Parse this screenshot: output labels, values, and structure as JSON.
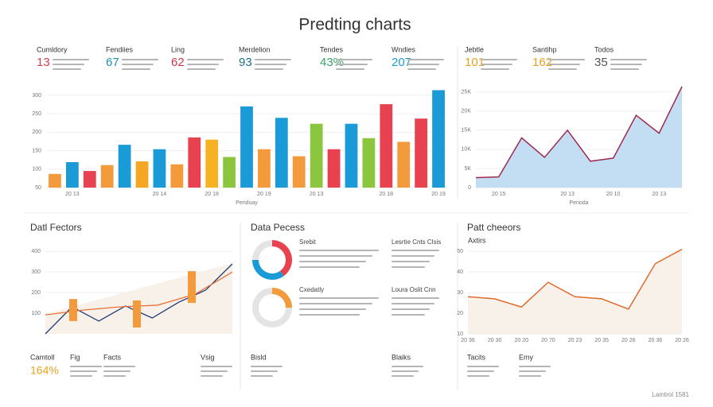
{
  "title": "Predting charts",
  "kpis": [
    {
      "label": "Cumldory",
      "value": "13",
      "color": "#d9414e"
    },
    {
      "label": "Fendiies",
      "value": "67",
      "color": "#1c8fb8"
    },
    {
      "label": "Ling",
      "value": "62",
      "color": "#c7384a"
    },
    {
      "label": "Merdelion",
      "value": "93",
      "color": "#1f6f86"
    },
    {
      "label": "Tendes",
      "value": "43%",
      "color": "#3aa66a"
    },
    {
      "label": "Wndies",
      "value": "207",
      "color": "#1b9fc7"
    },
    {
      "label": "Jebtle",
      "value": "101",
      "color": "#e8a21d"
    },
    {
      "label": "Santihp",
      "value": "162",
      "color": "#e6a020"
    },
    {
      "label": "Todos",
      "value": "35",
      "color": "#555555"
    }
  ],
  "sections": [
    "Datl Fectors",
    "Data Pecess",
    "Patt cheeors"
  ],
  "chart_data": [
    {
      "type": "bar",
      "x_label": "Periduay",
      "categories": [
        null,
        "20 13",
        null,
        null,
        null,
        null,
        "20 14",
        null,
        null,
        "20 18",
        null,
        null,
        "20 19",
        null,
        null,
        "20 13",
        null,
        null,
        null,
        "20 18",
        null,
        null,
        "20 19"
      ],
      "values": [
        87,
        119,
        95,
        111,
        166,
        121,
        154,
        113,
        186,
        180,
        133,
        270,
        154,
        239,
        135,
        223,
        154,
        223,
        184,
        276,
        174,
        237,
        314
      ],
      "colors": [
        "#f39a3c",
        "#1a9ad6",
        "#e8414f",
        "#f39a3c",
        "#1a9ad6",
        "#f5a623",
        "#1a9ad6",
        "#f39a3c",
        "#e8414f",
        "#f5b323",
        "#8cc63f",
        "#1a9ad6",
        "#f39a3c",
        "#1a9ad6",
        "#f39a3c",
        "#8cc63f",
        "#e8414f",
        "#1a9ad6",
        "#8cc63f",
        "#e8414f",
        "#f39a3c",
        "#e8414f",
        "#1a9ad6"
      ],
      "ylim": [
        50,
        330
      ],
      "yticks": [
        50,
        100,
        150,
        200,
        250,
        300
      ]
    },
    {
      "type": "area",
      "x_label": "Perioda",
      "categories": [
        null,
        "20 15",
        null,
        null,
        "20 13",
        null,
        "20 10",
        null,
        "20 13",
        null
      ],
      "values": [
        2600,
        2800,
        13000,
        7900,
        15000,
        6900,
        7700,
        18900,
        14200,
        26400
      ],
      "line_color": "#a0294f",
      "fill_color": "#bcd9f2",
      "ylim": [
        0,
        27000
      ],
      "yticks": [
        {
          "value": 0,
          "label": "0"
        },
        {
          "value": 5000,
          "label": "5K"
        },
        {
          "value": 10000,
          "label": "10K"
        },
        {
          "value": 15000,
          "label": "15K"
        },
        {
          "value": 20000,
          "label": "20K"
        },
        {
          "value": 25000,
          "label": "25K"
        }
      ]
    },
    {
      "type": "line",
      "series": [
        {
          "color": "#1f3c73",
          "values": [
            0,
            131,
            62,
            135,
            77,
            154,
            212,
            339
          ]
        },
        {
          "color": "#e8703a",
          "values": [
            92,
            115,
            131,
            139,
            192,
            300
          ]
        }
      ],
      "boxes": {
        "color": "#f39a3c",
        "ranges": [
          [
            62,
            169
          ],
          [
            31,
            162
          ],
          [
            150,
            304
          ]
        ]
      },
      "ylim": [
        0,
        420
      ],
      "yticks": [
        100,
        200,
        300,
        400
      ]
    },
    {
      "type": "donut",
      "items": [
        {
          "name": "Srebit",
          "side_label": "Lesrtie Cnts Clsis",
          "values": [
            40,
            35,
            25
          ],
          "colors": [
            "#e8414f",
            "#1a9ad6",
            "#e4e4e4"
          ]
        },
        {
          "name": "Cxedatly",
          "side_label": "Loura Oslit Cnn",
          "values": [
            25,
            75
          ],
          "colors": [
            "#f39a3c",
            "#e4e4e4"
          ]
        }
      ]
    },
    {
      "type": "area",
      "subtitle": "Axtirs",
      "categories": [
        "20 36",
        "20 30",
        "20 20",
        "20 70",
        "20 23",
        "20 35",
        "20 26",
        "20 36",
        "20 26"
      ],
      "values": [
        28,
        27,
        23,
        35,
        28,
        27,
        22,
        44,
        51
      ],
      "line_color": "#e06a2c",
      "fill_color": "#f7efe7",
      "ylim": [
        10,
        52
      ],
      "yticks": [
        10,
        20,
        30,
        40,
        50
      ]
    }
  ],
  "stats": [
    {
      "label": "Camtoll",
      "value": "164%"
    },
    {
      "label": "Fig"
    },
    {
      "label": "Facts"
    },
    {
      "label": "Vsig"
    },
    {
      "label": "Bisld"
    },
    {
      "label": "Blaiks"
    },
    {
      "label": "Tacits"
    },
    {
      "label": "Emy"
    }
  ],
  "footer": "Lamtrol 1581"
}
